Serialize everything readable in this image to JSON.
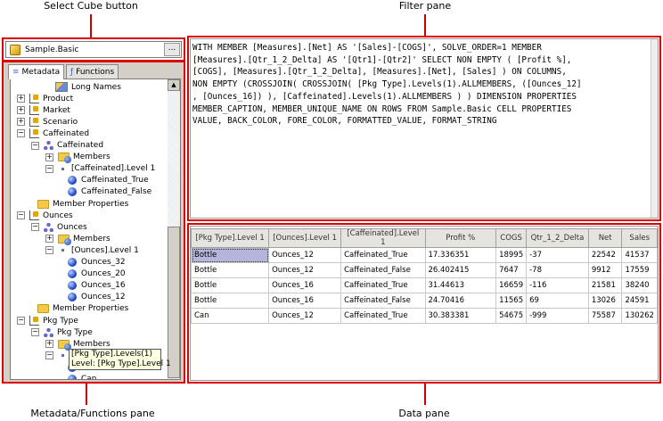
{
  "callouts": {
    "select_cube": "Select Cube button",
    "filter": "Filter pane",
    "metadata": "Metadata/Functions pane",
    "data": "Data pane"
  },
  "cube": {
    "name": "Sample.Basic",
    "browse_label": "..."
  },
  "tabs": [
    {
      "label": "Metadata",
      "active": true
    },
    {
      "label": "Functions",
      "active": false
    }
  ],
  "tree": [
    {
      "label": "Long Names",
      "icon": "long-names-icon",
      "level": 2,
      "toggle": ""
    },
    {
      "label": "Product",
      "icon": "dimension-icon",
      "level": 0,
      "toggle": "+"
    },
    {
      "label": "Market",
      "icon": "dimension-icon",
      "level": 0,
      "toggle": "+"
    },
    {
      "label": "Scenario",
      "icon": "dimension-icon",
      "level": 0,
      "toggle": "+"
    },
    {
      "label": "Caffeinated",
      "icon": "dimension-icon",
      "level": 0,
      "toggle": "-"
    },
    {
      "label": "Caffeinated",
      "icon": "hierarchy-icon",
      "level": 1,
      "toggle": "-"
    },
    {
      "label": "Members",
      "icon": "members-folder-icon",
      "level": 2,
      "toggle": "+"
    },
    {
      "label": "[Caffeinated].Level 1",
      "icon": "level-icon",
      "level": 2,
      "toggle": "-"
    },
    {
      "label": "Caffeinated_True",
      "icon": "member-icon",
      "level": 3,
      "toggle": ""
    },
    {
      "label": "Caffeinated_False",
      "icon": "member-icon",
      "level": 3,
      "toggle": ""
    },
    {
      "label": "Member Properties",
      "icon": "folder-icon",
      "level": 1.5,
      "toggle": ""
    },
    {
      "label": "Ounces",
      "icon": "dimension-icon",
      "level": 0,
      "toggle": "-"
    },
    {
      "label": "Ounces",
      "icon": "hierarchy-icon",
      "level": 1,
      "toggle": "-"
    },
    {
      "label": "Members",
      "icon": "members-folder-icon",
      "level": 2,
      "toggle": "+"
    },
    {
      "label": "[Ounces].Level 1",
      "icon": "level-icon",
      "level": 2,
      "toggle": "-"
    },
    {
      "label": "Ounces_32",
      "icon": "member-icon",
      "level": 3,
      "toggle": ""
    },
    {
      "label": "Ounces_20",
      "icon": "member-icon",
      "level": 3,
      "toggle": ""
    },
    {
      "label": "Ounces_16",
      "icon": "member-icon",
      "level": 3,
      "toggle": ""
    },
    {
      "label": "Ounces_12",
      "icon": "member-icon",
      "level": 3,
      "toggle": ""
    },
    {
      "label": "Member Properties",
      "icon": "folder-icon",
      "level": 1.5,
      "toggle": ""
    },
    {
      "label": "Pkg Type",
      "icon": "dimension-icon",
      "level": 0,
      "toggle": "-"
    },
    {
      "label": "Pkg Type",
      "icon": "hierarchy-icon",
      "level": 1,
      "toggle": "-"
    },
    {
      "label": "Members",
      "icon": "members-folder-icon",
      "level": 2,
      "toggle": "+"
    },
    {
      "label": "",
      "icon": "level-icon",
      "level": 2,
      "toggle": "-"
    },
    {
      "label": "",
      "icon": "member-icon",
      "level": 3,
      "toggle": ""
    },
    {
      "label": "Can",
      "icon": "member-icon",
      "level": 3,
      "toggle": ""
    }
  ],
  "tooltip": {
    "line1": "[Pkg Type].Levels(1)",
    "line2": "Level: [Pkg Type].Level 1"
  },
  "query_lines": [
    "WITH MEMBER [Measures].[Net] AS '[Sales]-[COGS]', SOLVE_ORDER=1 MEMBER",
    "[Measures].[Qtr_1_2_Delta] AS '[Qtr1]-[Qtr2]' SELECT NON EMPTY ( [Profit %],",
    "[COGS], [Measures].[Qtr_1_2_Delta], [Measures].[Net], [Sales] ) ON COLUMNS,",
    "NON EMPTY (CROSSJOIN( CROSSJOIN( [Pkg Type].Levels(1).ALLMEMBERS, ([Ounces_12]",
    ", [Ounces_16]) ), [Caffeinated].Levels(1).ALLMEMBERS ) ) DIMENSION PROPERTIES",
    "MEMBER_CAPTION, MEMBER_UNIQUE_NAME ON ROWS FROM Sample.Basic CELL PROPERTIES",
    "VALUE, BACK_COLOR, FORE_COLOR, FORMATTED_VALUE, FORMAT_STRING"
  ],
  "grid": {
    "columns": [
      "[Pkg Type].Level 1",
      "[Ounces].Level 1",
      "[Caffeinated].Level 1",
      "Profit %",
      "COGS",
      "Qtr_1_2_Delta",
      "Net",
      "Sales"
    ],
    "rows": [
      [
        "Bottle",
        "Ounces_12",
        "Caffeinated_True",
        "17.336351",
        "18995",
        "-37",
        "22542",
        "41537"
      ],
      [
        "Bottle",
        "Ounces_12",
        "Caffeinated_False",
        "26.402415",
        "7647",
        "-78",
        "9912",
        "17559"
      ],
      [
        "Bottle",
        "Ounces_16",
        "Caffeinated_True",
        "31.44613",
        "16659",
        "-116",
        "21581",
        "38240"
      ],
      [
        "Bottle",
        "Ounces_16",
        "Caffeinated_False",
        "24.70416",
        "11565",
        "69",
        "13026",
        "24591"
      ],
      [
        "Can",
        "Ounces_12",
        "Caffeinated_True",
        "30.383381",
        "54675",
        "-999",
        "75587",
        "130262"
      ]
    ]
  },
  "colors": {
    "callout_red": "#d00",
    "selection": "#b4b4dc"
  }
}
